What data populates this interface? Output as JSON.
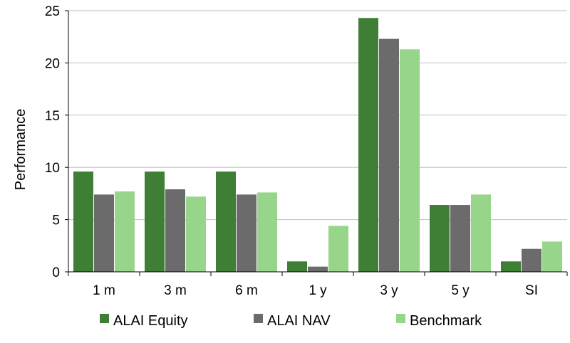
{
  "chart_data": {
    "type": "bar",
    "title": "",
    "xlabel": "",
    "ylabel": "Performance",
    "ylim": [
      0,
      25
    ],
    "yticks": [
      0,
      5,
      10,
      15,
      20,
      25
    ],
    "grid": true,
    "legend_position": "bottom",
    "categories": [
      "1 m",
      "3 m",
      "6 m",
      "1 y",
      "3 y",
      "5 y",
      "SI"
    ],
    "series": [
      {
        "name": "ALAI Equity",
        "color": "#3f7f35",
        "values": [
          9.6,
          9.6,
          9.6,
          1.0,
          24.3,
          6.4,
          1.0
        ]
      },
      {
        "name": "ALAI NAV",
        "color": "#6b6b6b",
        "values": [
          7.4,
          7.9,
          7.4,
          0.5,
          22.3,
          6.4,
          2.2
        ]
      },
      {
        "name": "Benchmark",
        "color": "#97d58a",
        "values": [
          7.7,
          7.2,
          7.6,
          4.4,
          21.3,
          7.4,
          2.9
        ]
      }
    ]
  }
}
